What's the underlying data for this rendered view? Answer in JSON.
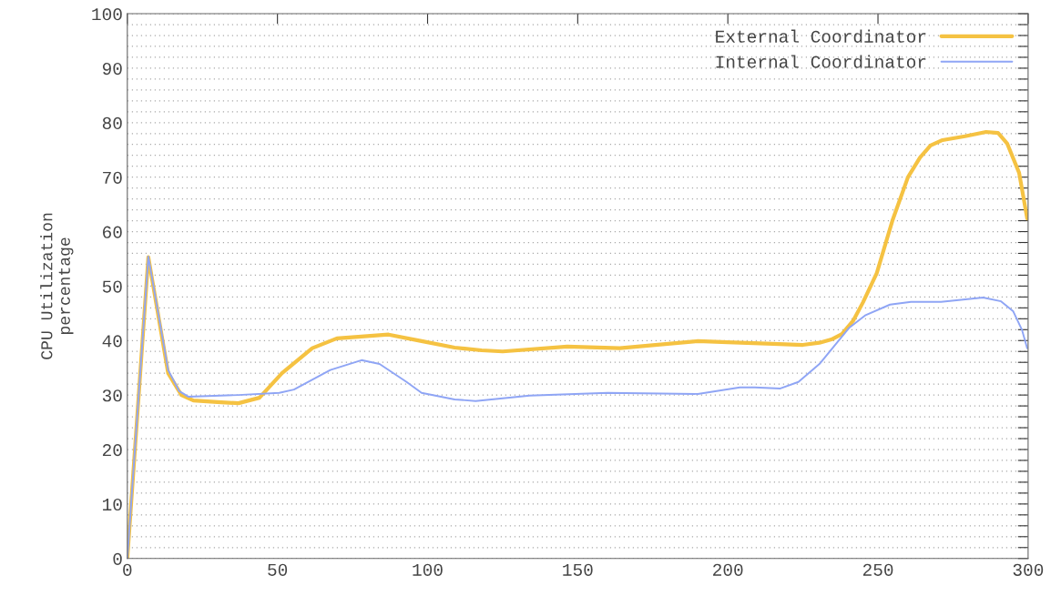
{
  "chart_data": {
    "type": "line",
    "ylabel": "CPU Utilization\npercentage",
    "xlim": [
      0,
      300
    ],
    "ylim": [
      0,
      100
    ],
    "xticks": [
      0,
      50,
      100,
      150,
      200,
      250,
      300
    ],
    "yticks": [
      0,
      {
        "value": 2,
        "label": null
      },
      {
        "value": 4,
        "label": null
      },
      {
        "value": 6,
        "label": null
      },
      {
        "value": 8,
        "label": null
      },
      10,
      {
        "value": 12,
        "label": null
      },
      {
        "value": 14,
        "label": null
      },
      {
        "value": 16,
        "label": null
      },
      {
        "value": 18,
        "label": null
      },
      20,
      {
        "value": 22,
        "label": null
      },
      {
        "value": 24,
        "label": null
      },
      {
        "value": 26,
        "label": null
      },
      {
        "value": 28,
        "label": null
      },
      30,
      {
        "value": 32,
        "label": null
      },
      {
        "value": 34,
        "label": null
      },
      {
        "value": 36,
        "label": null
      },
      {
        "value": 38,
        "label": null
      },
      40,
      {
        "value": 42,
        "label": null
      },
      {
        "value": 44,
        "label": null
      },
      {
        "value": 46,
        "label": null
      },
      {
        "value": 48,
        "label": null
      },
      50,
      {
        "value": 52,
        "label": null
      },
      {
        "value": 54,
        "label": null
      },
      {
        "value": 56,
        "label": null
      },
      {
        "value": 58,
        "label": null
      },
      60,
      {
        "value": 62,
        "label": null
      },
      {
        "value": 64,
        "label": null
      },
      {
        "value": 66,
        "label": null
      },
      {
        "value": 68,
        "label": null
      },
      70,
      {
        "value": 72,
        "label": null
      },
      {
        "value": 74,
        "label": null
      },
      {
        "value": 76,
        "label": null
      },
      {
        "value": 78,
        "label": null
      },
      80,
      {
        "value": 82,
        "label": null
      },
      {
        "value": 84,
        "label": null
      },
      {
        "value": 86,
        "label": null
      },
      {
        "value": 88,
        "label": null
      },
      90,
      {
        "value": 92,
        "label": null
      },
      {
        "value": 94,
        "label": null
      },
      {
        "value": 96,
        "label": null
      },
      {
        "value": 98,
        "label": null
      },
      100
    ],
    "grid": "y",
    "legend": "top right",
    "marker": "none",
    "line_style": "solid",
    "series": [
      {
        "name": "External Coordinator",
        "color": "#f5c242",
        "x": [
          0,
          7,
          13.6,
          18,
          22,
          30,
          37,
          44,
          51.5,
          61.6,
          69.8,
          87,
          98,
          109,
          118,
          125,
          146.5,
          164,
          190,
          200,
          215,
          225,
          230.5,
          234.5,
          238,
          241.7,
          245,
          249.6,
          254.8,
          260,
          264,
          267.5,
          271.5,
          279,
          286,
          290,
          293,
          297,
          299.7
        ],
        "values": [
          0,
          55.3,
          34,
          30,
          29,
          28.7,
          28.5,
          29.5,
          34,
          38.6,
          40.4,
          41.1,
          39.9,
          38.7,
          38.2,
          38,
          38.9,
          38.6,
          39.9,
          39.7,
          39.4,
          39.2,
          39.6,
          40.2,
          41.2,
          43.6,
          47,
          52.4,
          62,
          70,
          73.6,
          75.8,
          76.8,
          77.5,
          78.3,
          78.1,
          76.2,
          70.8,
          62.4
        ]
      },
      {
        "name": "Internal Coordinator",
        "color": "#8fa5f5",
        "x": [
          0,
          7,
          13.6,
          17.3,
          20.3,
          37,
          50.6,
          55.5,
          67.6,
          78,
          84,
          93,
          98,
          109,
          116,
          134,
          160,
          190,
          204,
          209,
          217.5,
          223.5,
          230.5,
          240.5,
          245.7,
          254,
          261,
          271,
          285,
          291,
          295,
          298,
          299.7
        ],
        "values": [
          0,
          55.4,
          34.6,
          30.7,
          29.7,
          30,
          30.4,
          31,
          34.6,
          36.4,
          35.7,
          32.4,
          30.4,
          29.2,
          28.9,
          29.9,
          30.4,
          30.2,
          31.4,
          31.4,
          31.2,
          32.4,
          35.7,
          42.4,
          44.6,
          46.6,
          47.1,
          47.1,
          47.9,
          47.2,
          45.4,
          41.9,
          38.6
        ]
      }
    ]
  }
}
